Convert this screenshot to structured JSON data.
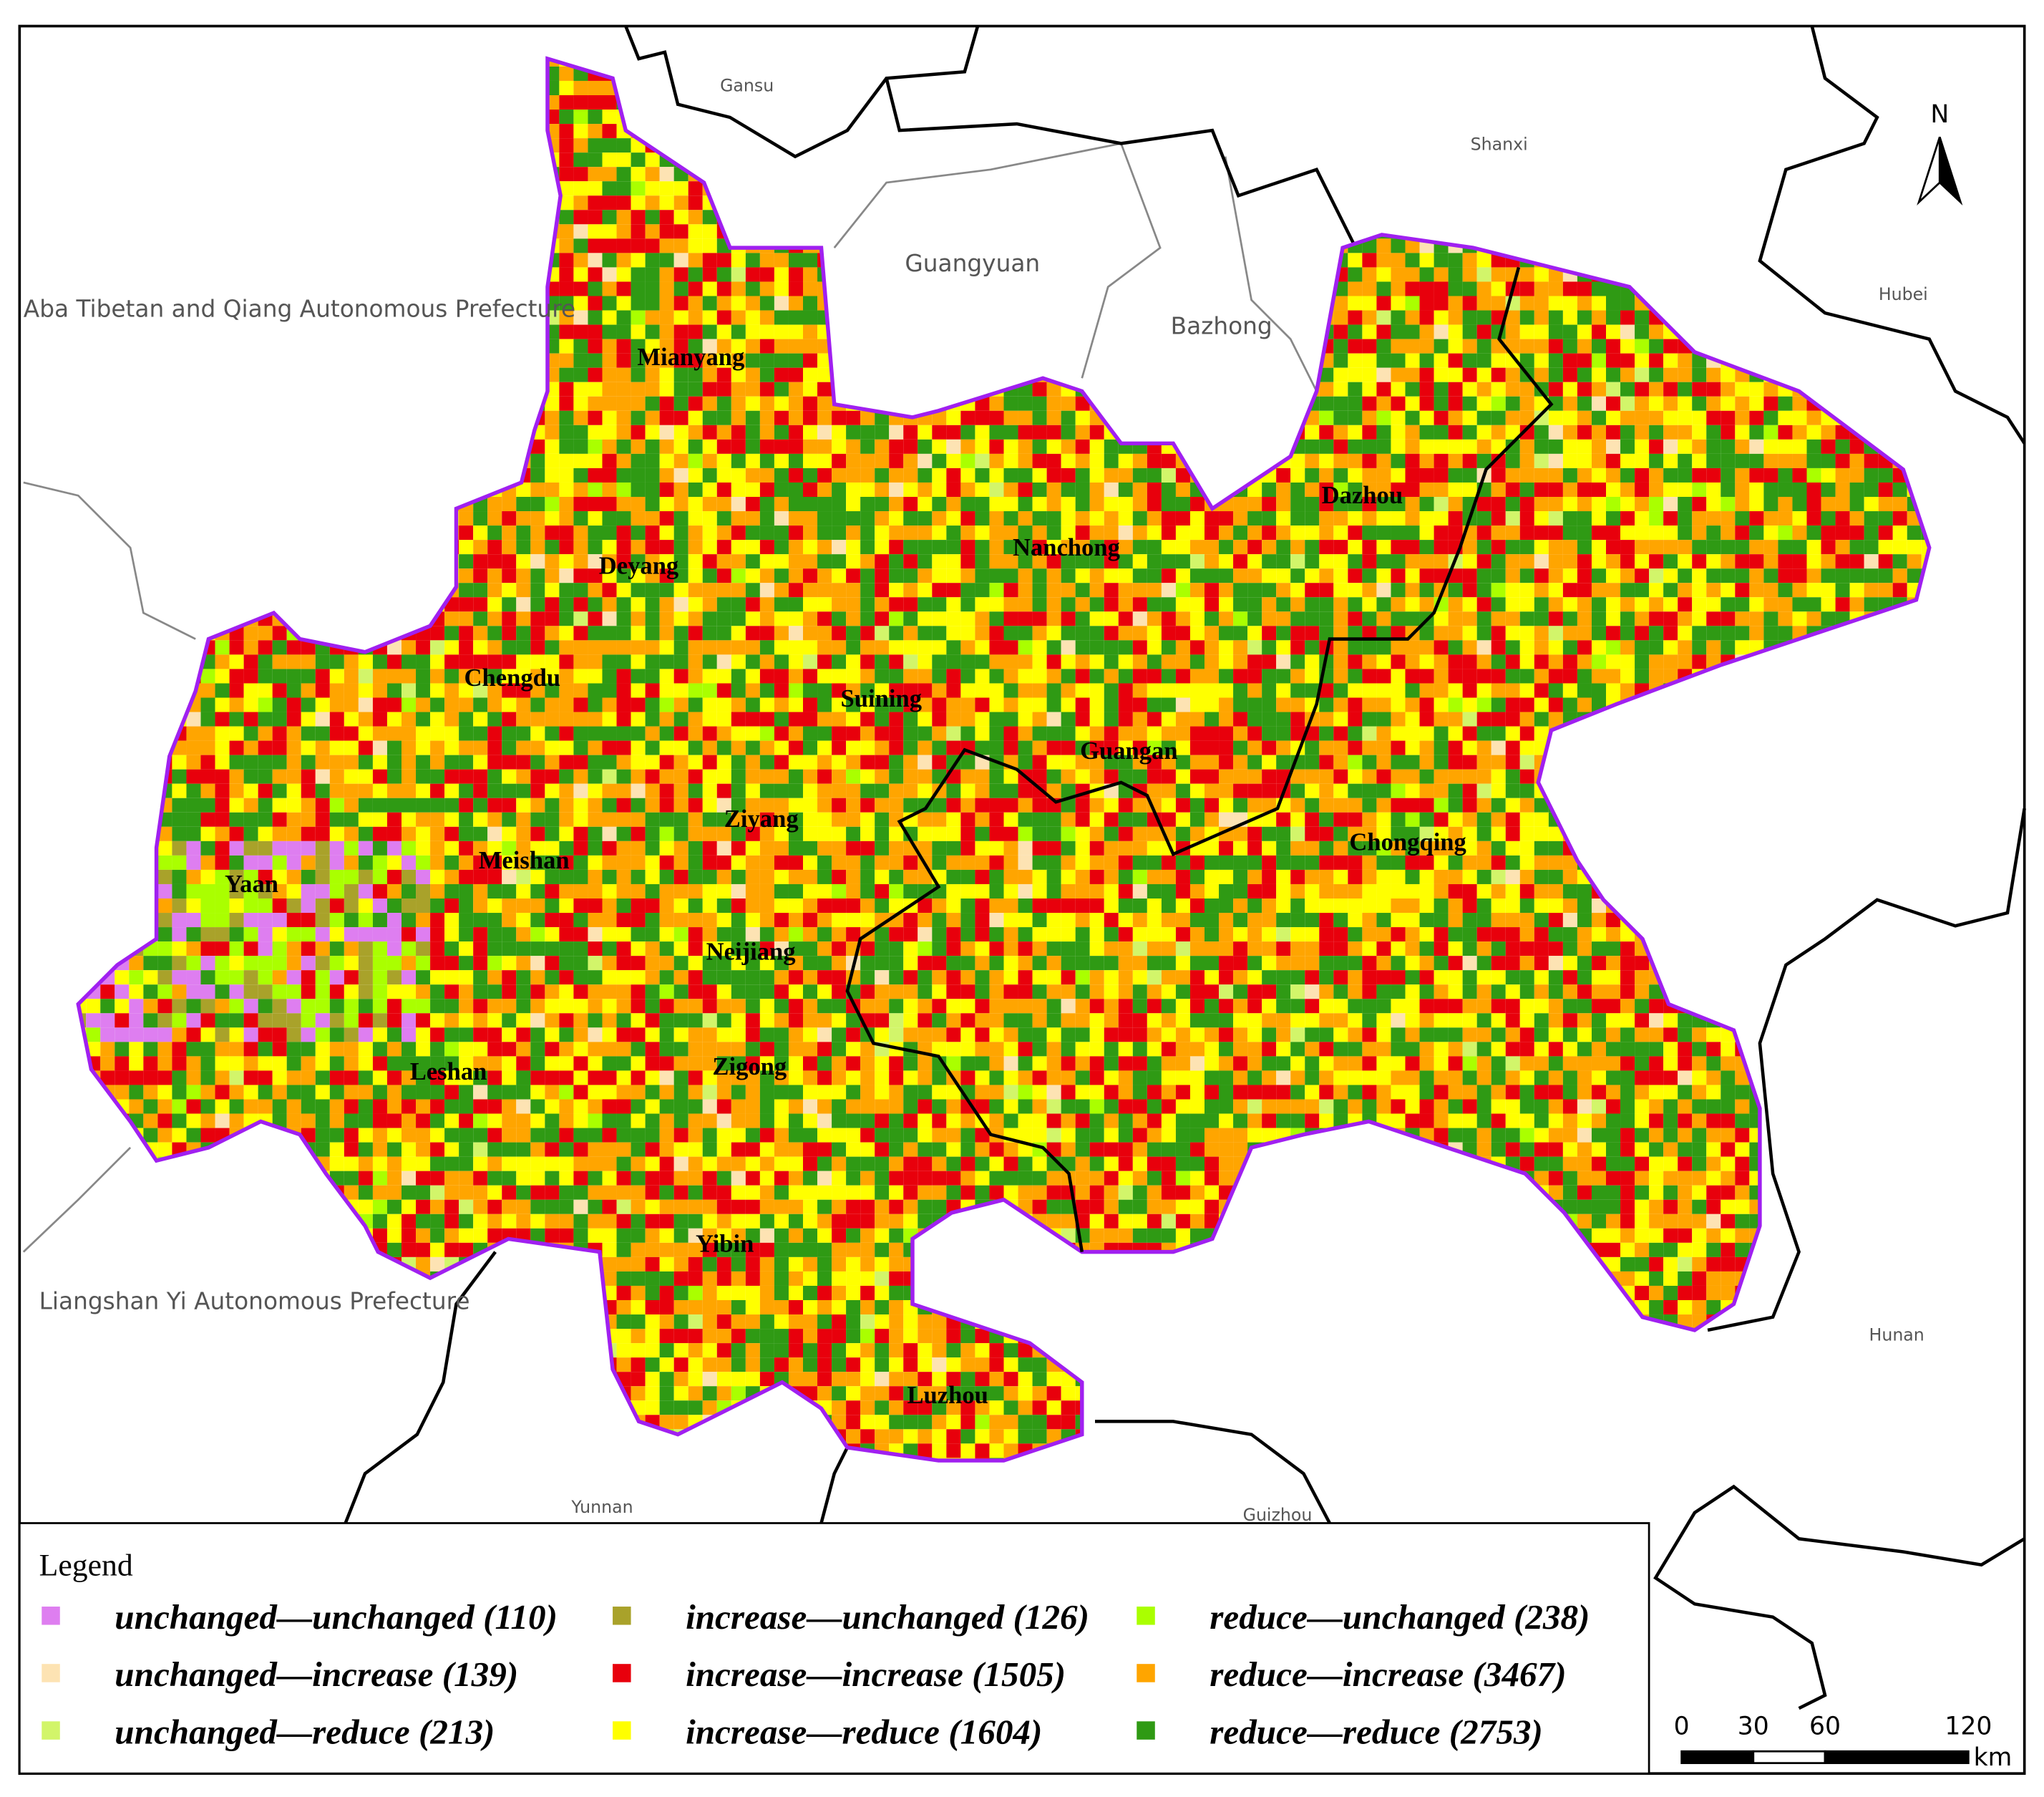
{
  "map": {
    "north": "N",
    "neighbors": [
      "Gansu",
      "Shanxi",
      "Hubei",
      "Hunan",
      "Guizhou",
      "Yunnan",
      "Guangyuan",
      "Bazhong",
      "Aba Tibetan and Qiang Autonomous Prefecture",
      "Liangshan Yi Autonomous Prefecture"
    ],
    "cities": [
      "Mianyang",
      "Deyang",
      "Chengdu",
      "Yaan",
      "Meishan",
      "Leshan",
      "Ziyang",
      "Suining",
      "Nanchong",
      "Dazhou",
      "Guangan",
      "Chongqing",
      "Neijiang",
      "Zigong",
      "Yibin",
      "Luzhou"
    ],
    "legend": {
      "title": "Legend",
      "items": [
        {
          "label": "unchanged—unchanged (110)",
          "color": "#de7ef0"
        },
        {
          "label": "unchanged—increase (139)",
          "color": "#fde3b3"
        },
        {
          "label": "unchanged—reduce (213)",
          "color": "#d2f56a"
        },
        {
          "label": "increase—unchanged (126)",
          "color": "#a9a22a"
        },
        {
          "label": "increase—increase (1505)",
          "color": "#e8000c"
        },
        {
          "label": "increase—reduce (1604)",
          "color": "#ffff00"
        },
        {
          "label": "reduce—unchanged (238)",
          "color": "#aaff00"
        },
        {
          "label": "reduce—increase (3467)",
          "color": "#ffa500"
        },
        {
          "label": "reduce—reduce (2753)",
          "color": "#2f9a14"
        }
      ]
    },
    "scale_bar": {
      "ticks": [
        0,
        30,
        60,
        120
      ],
      "unit": "km"
    }
  }
}
